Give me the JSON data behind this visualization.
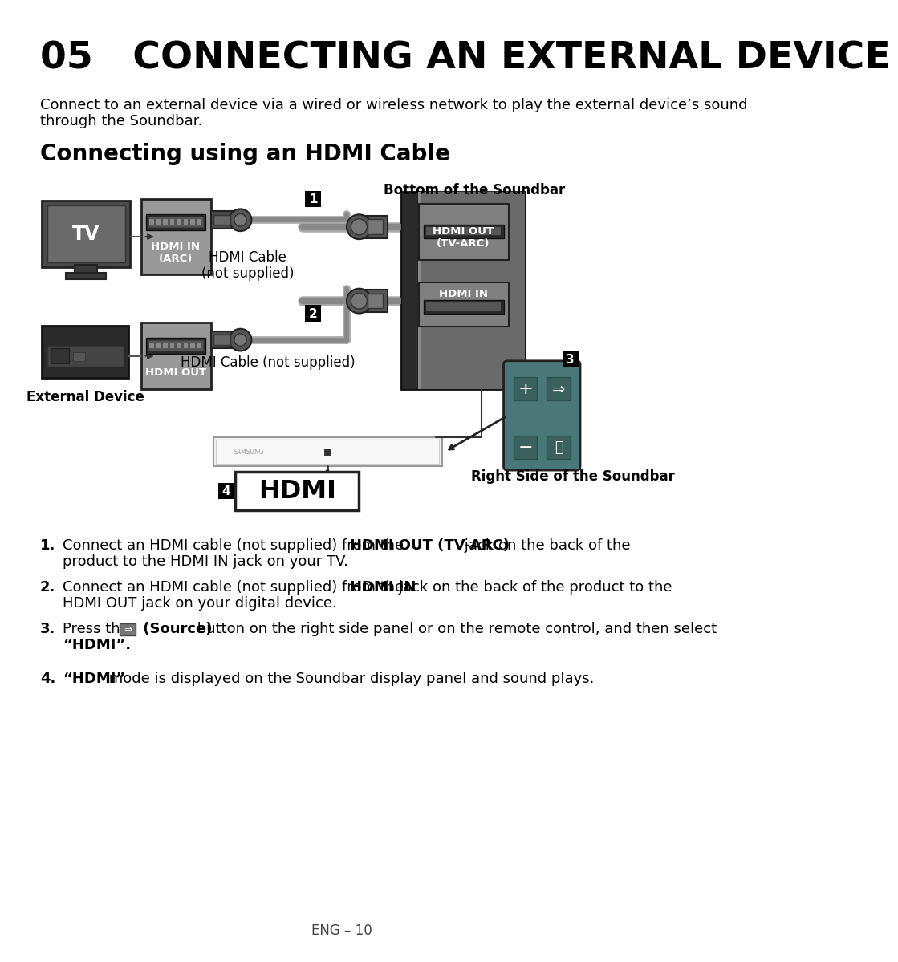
{
  "title": "05   CONNECTING AN EXTERNAL DEVICE",
  "subtitle_line1": "Connect to an external device via a wired or wireless network to play the external device’s sound",
  "subtitle_line2": "through the Soundbar.",
  "section_title": "Connecting using an HDMI Cable",
  "bottom_label": "Bottom of the Soundbar",
  "right_label": "Right Side of the Soundbar",
  "hdmi_cable_label1_a": "HDMI Cable",
  "hdmi_cable_label1_b": "(not supplied)",
  "hdmi_cable_label2": "HDMI Cable (not supplied)",
  "tv_label": "TV",
  "ext_device_label": "External Device",
  "hdmi_in_arc_label": "HDMI IN\n(ARC)",
  "hdmi_out_label": "HDMI OUT",
  "hdmi_out_tvarc_label": "HDMI OUT\n(TV-ARC)",
  "hdmi_in_label": "HDMI IN",
  "hdmi_display_label": "HDMI",
  "footer": "ENG – 10",
  "instr1_normal": "Connect an HDMI cable (not supplied) from the ",
  "instr1_bold": "HDMI OUT (TV-ARC)",
  "instr1_cont": " jack on the back of the",
  "instr1_line2": "product to the HDMI IN jack on your TV.",
  "instr2_normal": "Connect an HDMI cable (not supplied) from the ",
  "instr2_bold": "HDMI IN",
  "instr2_cont": " jack on the back of the product to the",
  "instr2_line2": "HDMI OUT jack on your digital device.",
  "instr3_pre": "Press the ",
  "instr3_bold": "(Source)",
  "instr3_cont": " button on the right side panel or on the remote control, and then select",
  "instr3_line2": "“HDMI”.",
  "instr4_bold": "“HDMI”",
  "instr4_cont": " mode is displayed on the Soundbar display panel and sound plays.",
  "bg_color": "#ffffff"
}
